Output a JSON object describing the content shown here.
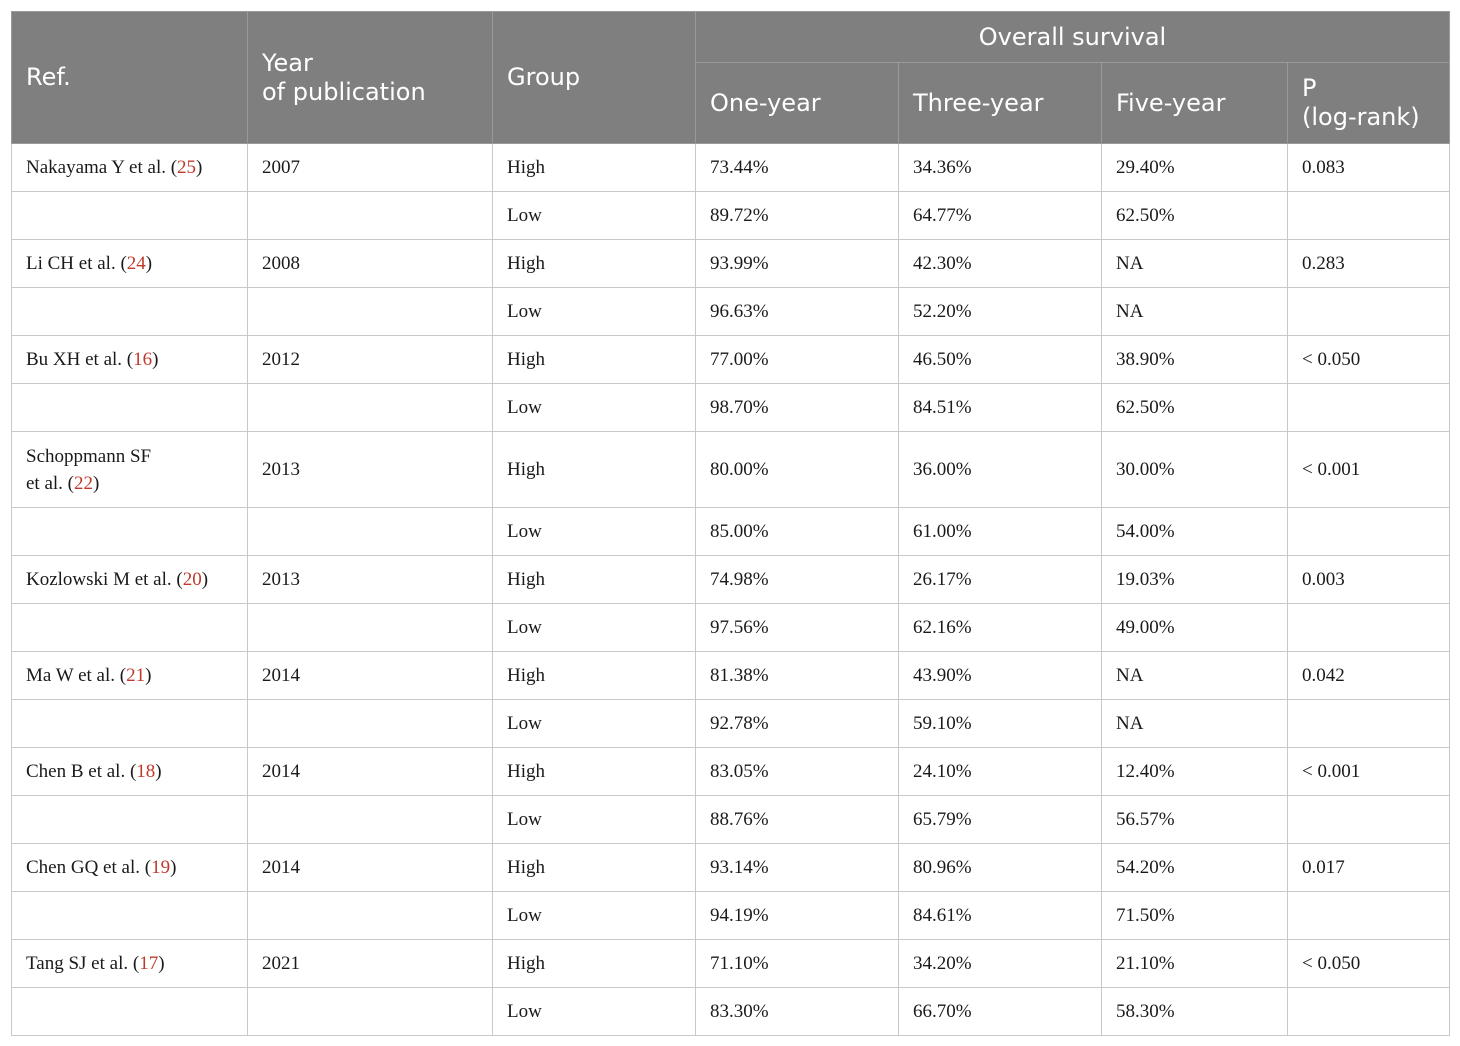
{
  "header": {
    "ref": "Ref.",
    "year_line1": "Year",
    "year_line2": "of publication",
    "group": "Group",
    "overall_survival": "Overall survival",
    "one_year": "One-year",
    "three_year": "Three-year",
    "five_year": "Five-year",
    "p_line1": "P",
    "p_line2": "(log-rank)"
  },
  "studies": [
    {
      "author": "Nakayama Y et al. (",
      "ref": "25",
      "close": ")",
      "author_line2": "",
      "year": "2007",
      "p": "0.083",
      "high": {
        "group": "High",
        "one": "73.44%",
        "three": "34.36%",
        "five": "29.40%"
      },
      "low": {
        "group": "Low",
        "one": "89.72%",
        "three": "64.77%",
        "five": "62.50%"
      }
    },
    {
      "author": "Li CH et al. (",
      "ref": "24",
      "close": ")",
      "author_line2": "",
      "year": "2008",
      "p": "0.283",
      "high": {
        "group": "High",
        "one": "93.99%",
        "three": "42.30%",
        "five": "NA"
      },
      "low": {
        "group": "Low",
        "one": "96.63%",
        "three": "52.20%",
        "five": "NA"
      }
    },
    {
      "author": "Bu XH et al. (",
      "ref": "16",
      "close": ")",
      "author_line2": "",
      "year": "2012",
      "p": "< 0.050",
      "high": {
        "group": "High",
        "one": "77.00%",
        "three": "46.50%",
        "five": "38.90%"
      },
      "low": {
        "group": "Low",
        "one": "98.70%",
        "three": "84.51%",
        "five": "62.50%"
      }
    },
    {
      "author": "Schoppmann SF",
      "ref": "22",
      "close": ")",
      "author_line2": "et al. (",
      "year": "2013",
      "p": "< 0.001",
      "high": {
        "group": "High",
        "one": "80.00%",
        "three": "36.00%",
        "five": "30.00%"
      },
      "low": {
        "group": "Low",
        "one": "85.00%",
        "three": "61.00%",
        "five": "54.00%"
      }
    },
    {
      "author": "Kozlowski M et al. (",
      "ref": "20",
      "close": ")",
      "author_line2": "",
      "year": "2013",
      "p": "0.003",
      "high": {
        "group": "High",
        "one": "74.98%",
        "three": "26.17%",
        "five": "19.03%"
      },
      "low": {
        "group": "Low",
        "one": "97.56%",
        "three": "62.16%",
        "five": "49.00%"
      }
    },
    {
      "author": "Ma W et al. (",
      "ref": "21",
      "close": ")",
      "author_line2": "",
      "year": "2014",
      "p": "0.042",
      "high": {
        "group": "High",
        "one": "81.38%",
        "three": "43.90%",
        "five": "NA"
      },
      "low": {
        "group": "Low",
        "one": "92.78%",
        "three": "59.10%",
        "five": "NA"
      }
    },
    {
      "author": "Chen B et al. (",
      "ref": "18",
      "close": ")",
      "author_line2": "",
      "year": "2014",
      "p": "< 0.001",
      "high": {
        "group": "High",
        "one": "83.05%",
        "three": "24.10%",
        "five": "12.40%"
      },
      "low": {
        "group": "Low",
        "one": "88.76%",
        "three": "65.79%",
        "five": "56.57%"
      }
    },
    {
      "author": "Chen GQ et al. (",
      "ref": "19",
      "close": ")",
      "author_line2": "",
      "year": "2014",
      "p": "0.017",
      "high": {
        "group": "High",
        "one": "93.14%",
        "three": "80.96%",
        "five": "54.20%"
      },
      "low": {
        "group": "Low",
        "one": "94.19%",
        "three": "84.61%",
        "five": "71.50%"
      }
    },
    {
      "author": "Tang SJ et al. (",
      "ref": "17",
      "close": ")",
      "author_line2": "",
      "year": "2021",
      "p": "< 0.050",
      "high": {
        "group": "High",
        "one": "71.10%",
        "three": "34.20%",
        "five": "21.10%"
      },
      "low": {
        "group": "Low",
        "one": "83.30%",
        "three": "66.70%",
        "five": "58.30%"
      }
    }
  ],
  "colors": {
    "header_bg": "#7f7f7f",
    "header_text": "#ffffff",
    "ref_link": "#c0392b",
    "border": "#c8c8c8"
  }
}
